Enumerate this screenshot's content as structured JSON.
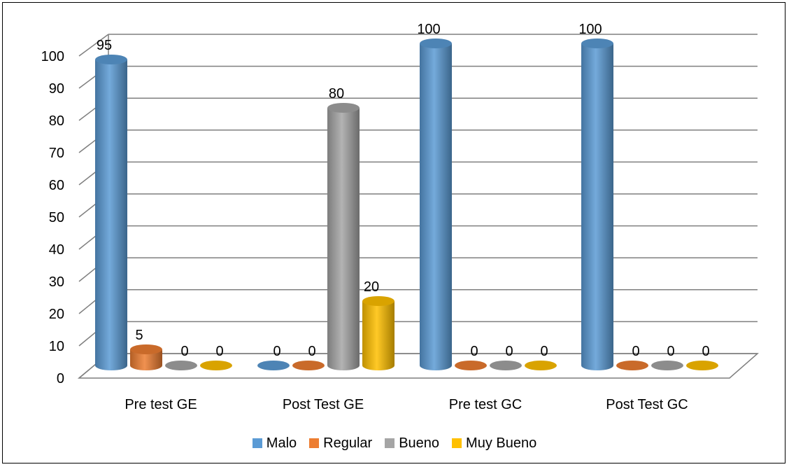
{
  "chart_data": {
    "type": "bar",
    "three_d": true,
    "bar_shape": "cylinder",
    "categories": [
      "Pre test GE",
      "Post Test GE",
      "Pre test GC",
      "Post Test GC"
    ],
    "series": [
      {
        "name": "Malo",
        "values": [
          95,
          0,
          100,
          100
        ],
        "color": "#5B9BD5"
      },
      {
        "name": "Regular",
        "values": [
          5,
          0,
          0,
          0
        ],
        "color": "#ED7D31"
      },
      {
        "name": "Bueno",
        "values": [
          0,
          80,
          0,
          0
        ],
        "color": "#A5A5A5"
      },
      {
        "name": "Muy Bueno",
        "values": [
          0,
          20,
          0,
          0
        ],
        "color": "#FFC000"
      }
    ],
    "data_labels": [
      [
        "95",
        "5",
        "0",
        "0"
      ],
      [
        "0",
        "0",
        "80",
        "20"
      ],
      [
        "100",
        "0",
        "0",
        "0"
      ],
      [
        "100",
        "0",
        "0",
        "0"
      ]
    ],
    "y_ticks": [
      "0",
      "10",
      "20",
      "30",
      "40",
      "50",
      "60",
      "70",
      "80",
      "90",
      "100"
    ],
    "ylim": [
      0,
      100
    ],
    "grid": true,
    "legend_position": "bottom"
  }
}
